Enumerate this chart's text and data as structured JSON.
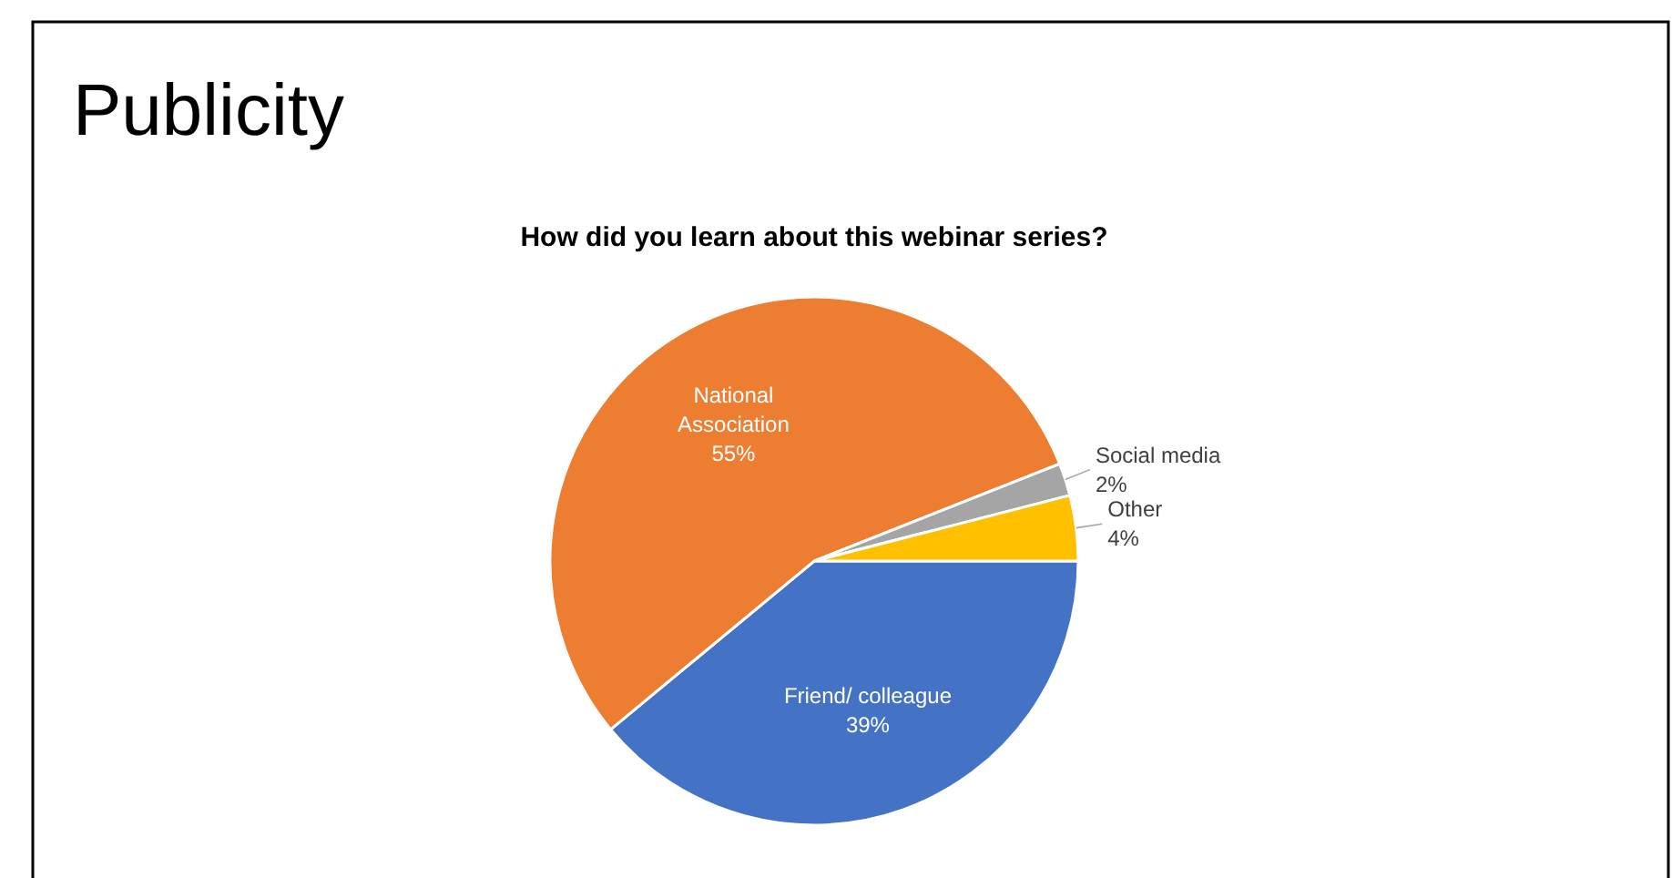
{
  "chart_data": {
    "type": "pie",
    "title": "Publicity",
    "subtitle": "How did you learn about this webinar series?",
    "categories": [
      "Friend/ colleague",
      "National Association",
      "Social media",
      "Other"
    ],
    "values": [
      39,
      55,
      2,
      4
    ],
    "colors": [
      "#4472c4",
      "#ed7d31",
      "#a5a5a5",
      "#ffc000"
    ],
    "value_labels": [
      "39%",
      "55%",
      "2%",
      "4%"
    ]
  }
}
